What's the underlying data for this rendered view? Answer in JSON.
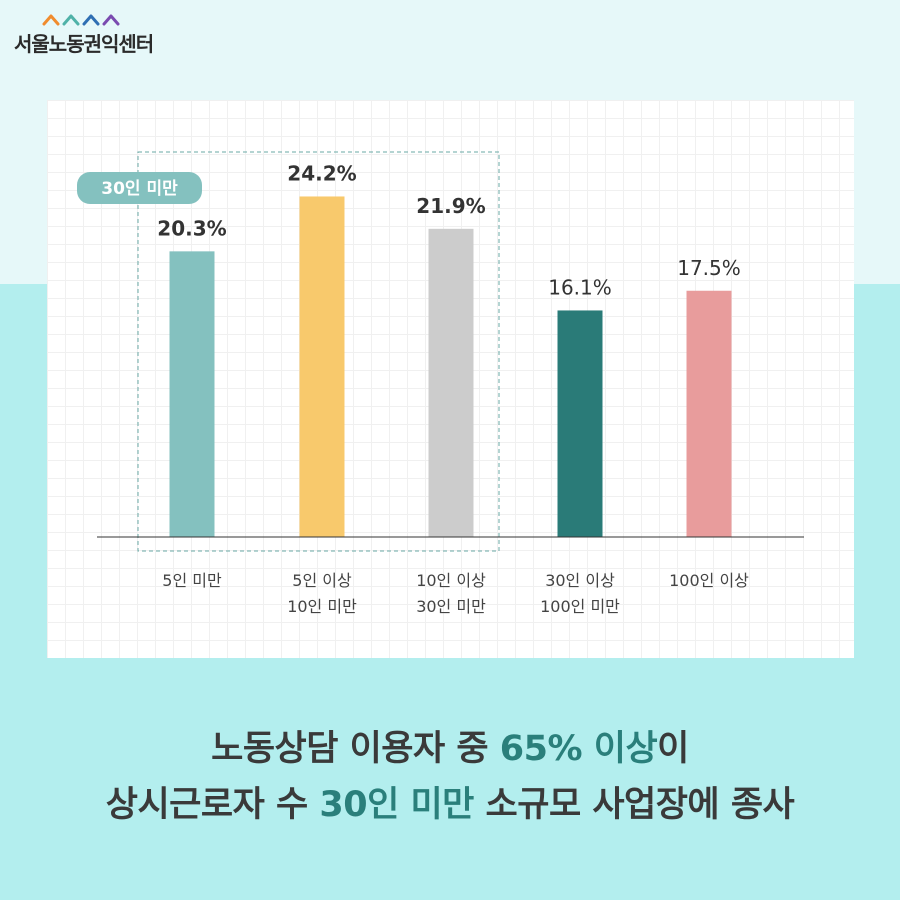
{
  "brand": {
    "name": "서울노동권익센터",
    "mark_colors": [
      "#f08c2e",
      "#4fb2a8",
      "#2f6fb3",
      "#7a4bb0"
    ]
  },
  "chart_data": {
    "type": "bar",
    "categories": [
      [
        "5인 미만"
      ],
      [
        "5인 이상",
        "10인 미만"
      ],
      [
        "10인 이상",
        "30인 미만"
      ],
      [
        "30인 이상",
        "100인 미만"
      ],
      [
        "100인 이상"
      ]
    ],
    "values": [
      20.3,
      24.2,
      21.9,
      16.1,
      17.5
    ],
    "value_labels": [
      "20.3%",
      "24.2%",
      "21.9%",
      "16.1%",
      "17.5%"
    ],
    "bold_labels": [
      true,
      true,
      true,
      false,
      false
    ],
    "colors": [
      "#84c1bf",
      "#f8c96c",
      "#cccccc",
      "#2a7b78",
      "#e89c9c"
    ],
    "ylim": [
      0,
      28
    ],
    "grid": true,
    "annotation": {
      "text": "30인 미만",
      "spans_categories": [
        0,
        2
      ],
      "style": "dashed box"
    }
  },
  "headline": {
    "line1": {
      "pre": "노동상담 이용자 중 ",
      "highlight": "65% 이상",
      "post": "이"
    },
    "line2": {
      "pre": "상시근로자 수 ",
      "highlight": "30인 미만",
      "post": " 소규모 사업장에 종사"
    }
  }
}
